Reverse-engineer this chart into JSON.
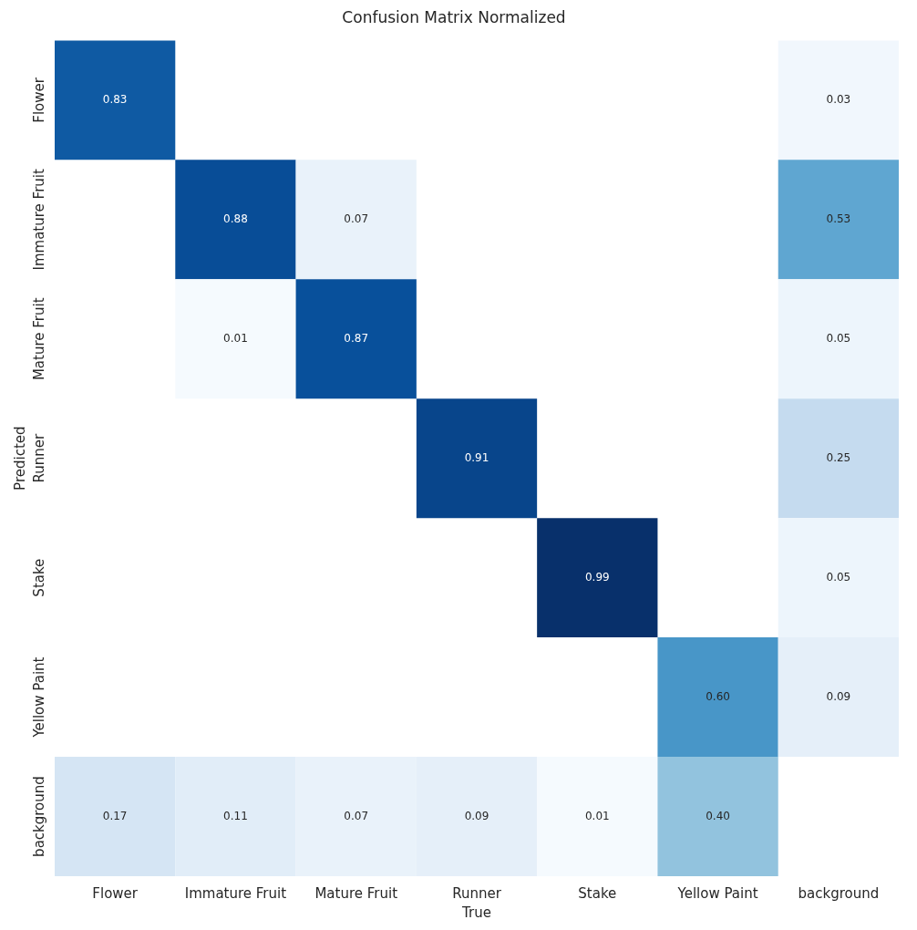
{
  "chart_data": {
    "type": "heatmap",
    "title": "Confusion Matrix Normalized",
    "xlabel": "True",
    "ylabel": "Predicted",
    "categories": [
      "Flower",
      "Immature Fruit",
      "Mature Fruit",
      "Runner",
      "Stake",
      "Yellow Paint",
      "background"
    ],
    "y_categories": [
      "Flower",
      "Immature Fruit",
      "Mature Fruit",
      "Runner",
      "Stake",
      "Yellow Paint",
      "background"
    ],
    "cells": [
      [
        0.83,
        null,
        null,
        null,
        null,
        null,
        0.03
      ],
      [
        null,
        0.88,
        0.07,
        null,
        null,
        null,
        0.53
      ],
      [
        null,
        0.01,
        0.87,
        null,
        null,
        null,
        0.05
      ],
      [
        null,
        null,
        null,
        0.91,
        null,
        null,
        0.25
      ],
      [
        null,
        null,
        null,
        null,
        0.99,
        null,
        0.05
      ],
      [
        null,
        null,
        null,
        null,
        null,
        0.6,
        0.09
      ],
      [
        0.17,
        0.11,
        0.07,
        0.09,
        0.01,
        0.4,
        null
      ]
    ],
    "cell_labels": [
      [
        "0.83",
        null,
        null,
        null,
        null,
        null,
        "0.03"
      ],
      [
        null,
        "0.88",
        "0.07",
        null,
        null,
        null,
        "0.53"
      ],
      [
        null,
        "0.01",
        "0.87",
        null,
        null,
        null,
        "0.05"
      ],
      [
        null,
        null,
        null,
        "0.91",
        null,
        null,
        "0.25"
      ],
      [
        null,
        null,
        null,
        null,
        "0.99",
        null,
        "0.05"
      ],
      [
        null,
        null,
        null,
        null,
        null,
        "0.60",
        "0.09"
      ],
      [
        "0.17",
        "0.11",
        "0.07",
        "0.09",
        "0.01",
        "0.40",
        null
      ]
    ]
  }
}
